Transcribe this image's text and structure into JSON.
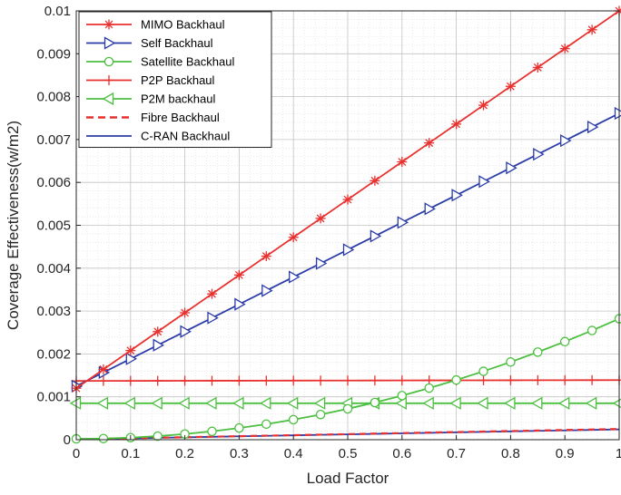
{
  "chart_data": {
    "type": "line",
    "title": "",
    "xlabel": "Load Factor",
    "ylabel": "Coverage Effectiveness(w/m2)",
    "xlim": [
      0,
      1
    ],
    "ylim": [
      0,
      0.01
    ],
    "grid": true,
    "legend_position": "top-left",
    "x_ticks": [
      0,
      0.1,
      0.2,
      0.3,
      0.4,
      0.5,
      0.6,
      0.7,
      0.8,
      0.9,
      1
    ],
    "x_tick_labels": [
      "0",
      "0.1",
      "0.2",
      "0.3",
      "0.4",
      "0.5",
      "0.6",
      "0.7",
      "0.8",
      "0.9",
      "1"
    ],
    "y_ticks": [
      0,
      0.001,
      0.002,
      0.003,
      0.004,
      0.005,
      0.006,
      0.007,
      0.008,
      0.009,
      0.01
    ],
    "y_tick_labels": [
      "0",
      "0.001",
      "0.002",
      "0.003",
      "0.004",
      "0.005",
      "0.006",
      "0.007",
      "0.008",
      "0.009",
      "0.01"
    ],
    "x": [
      0,
      0.05,
      0.1,
      0.15,
      0.2,
      0.25,
      0.3,
      0.35,
      0.4,
      0.45,
      0.5,
      0.55,
      0.6,
      0.65,
      0.7,
      0.75,
      0.8,
      0.85,
      0.9,
      0.95,
      1
    ],
    "series": [
      {
        "name": "MIMO Backhaul",
        "color": "#e8312f",
        "marker": "asterisk",
        "dashed": false,
        "values": [
          0.0012,
          0.00164,
          0.00208,
          0.00252,
          0.00296,
          0.0034,
          0.00384,
          0.00428,
          0.00472,
          0.00516,
          0.0056,
          0.00604,
          0.00648,
          0.00692,
          0.00736,
          0.0078,
          0.00824,
          0.00868,
          0.00912,
          0.00956,
          0.01
        ]
      },
      {
        "name": "Self Backhaul",
        "color": "#2b3ca8",
        "marker": "triangle-right",
        "dashed": false,
        "values": [
          0.00125,
          0.001568,
          0.001886,
          0.002204,
          0.002522,
          0.00284,
          0.003158,
          0.003476,
          0.003794,
          0.004112,
          0.00443,
          0.004748,
          0.005066,
          0.005384,
          0.005702,
          0.00602,
          0.006338,
          0.006656,
          0.006974,
          0.007292,
          0.00761
        ]
      },
      {
        "name": "Satellite Backhaul",
        "color": "#4bbf3f",
        "marker": "circle",
        "dashed": false,
        "values": [
          2e-05,
          2.7e-05,
          4.8e-05,
          8.3e-05,
          0.000132,
          0.000195,
          0.000272,
          0.000363,
          0.000468,
          0.000587,
          0.00072,
          0.000867,
          0.001028,
          0.001203,
          0.001392,
          0.001595,
          0.001812,
          0.002043,
          0.002288,
          0.002547,
          0.00282
        ]
      },
      {
        "name": "P2P Backhaul",
        "color": "#e8312f",
        "marker": "plus",
        "dashed": false,
        "values": [
          0.00137,
          0.001371,
          0.001372,
          0.001373,
          0.001374,
          0.001375,
          0.001376,
          0.001377,
          0.001378,
          0.001379,
          0.00138,
          0.001381,
          0.001382,
          0.001383,
          0.001384,
          0.001385,
          0.001386,
          0.001387,
          0.001388,
          0.001389,
          0.00139
        ]
      },
      {
        "name": "P2M backhaul",
        "color": "#4bbf3f",
        "marker": "triangle-left",
        "dashed": false,
        "values": [
          0.00085,
          0.00085,
          0.00085,
          0.00085,
          0.00085,
          0.00085,
          0.00085,
          0.00085,
          0.00085,
          0.00085,
          0.00085,
          0.00085,
          0.00085,
          0.00085,
          0.00085,
          0.00085,
          0.00085,
          0.00085,
          0.00085,
          0.00085,
          0.00085
        ]
      },
      {
        "name": "Fibre Backhaul",
        "color": "#e8312f",
        "marker": "none",
        "dashed": true,
        "values": [
          1e-05,
          2.2e-05,
          3.4e-05,
          4.6e-05,
          5.8e-05,
          7e-05,
          8.2e-05,
          9.4e-05,
          0.000106,
          0.000118,
          0.00013,
          0.000142,
          0.000154,
          0.000166,
          0.000178,
          0.00019,
          0.000202,
          0.000214,
          0.000226,
          0.000238,
          0.00025
        ]
      },
      {
        "name": "C-RAN Backhaul",
        "color": "#2b3ca8",
        "marker": "none",
        "dashed": false,
        "values": [
          1e-05,
          2.15e-05,
          3.3e-05,
          4.45e-05,
          5.6e-05,
          6.75e-05,
          7.9e-05,
          9.05e-05,
          0.000102,
          0.0001135,
          0.000125,
          0.0001365,
          0.000148,
          0.0001595,
          0.000171,
          0.0001825,
          0.000194,
          0.0002055,
          0.000217,
          0.0002285,
          0.00024
        ]
      }
    ]
  }
}
